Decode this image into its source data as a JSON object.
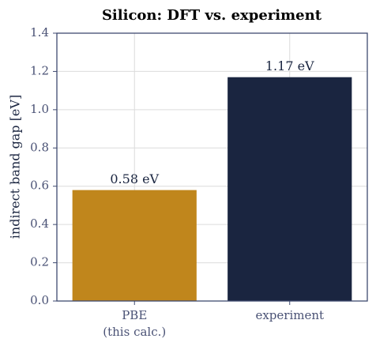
{
  "chart_data": {
    "type": "bar",
    "title": "Silicon: DFT vs. experiment",
    "y_label": "indirect band gap  [eV]",
    "categories": [
      "PBE\n(this calc.)",
      "experiment"
    ],
    "values": [
      0.58,
      1.17
    ],
    "value_labels": [
      "0.58 eV",
      "1.17 eV"
    ],
    "colors": [
      "#c0861c",
      "#1a2540"
    ],
    "ylim": [
      0,
      1.4
    ],
    "yticks": [
      {
        "value": 0,
        "label": "0.0"
      },
      0.2,
      0.4,
      0.6,
      0.8,
      {
        "value": 1,
        "label": "1.0"
      },
      1.2,
      1.4
    ],
    "grid": true
  }
}
